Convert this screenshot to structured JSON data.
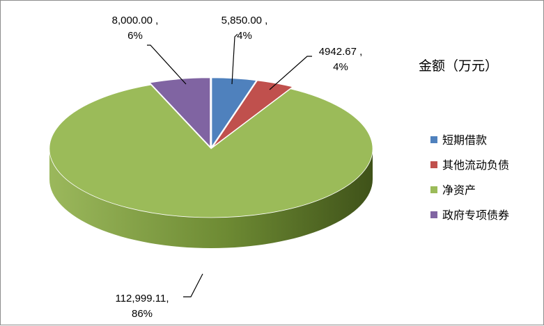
{
  "chart_data": {
    "type": "pie",
    "title": "金额（万元）",
    "series": [
      {
        "name": "短期借款",
        "value": 5850.0,
        "value_label": "5,850.00 ,",
        "pct_label": "4%",
        "color": "#4f81bd"
      },
      {
        "name": "其他流动负债",
        "value": 4942.67,
        "value_label": "4942.67 ,",
        "pct_label": "4%",
        "color": "#c0504d"
      },
      {
        "name": "净资产",
        "value": 112999.11,
        "value_label": "112,999.11,",
        "pct_label": "86%",
        "color": "#9bbb59"
      },
      {
        "name": "政府专项债券",
        "value": 8000.0,
        "value_label": "8,000.00 ,",
        "pct_label": "6%",
        "color": "#8064a2"
      }
    ],
    "legend_position": "right",
    "style": "3d"
  }
}
